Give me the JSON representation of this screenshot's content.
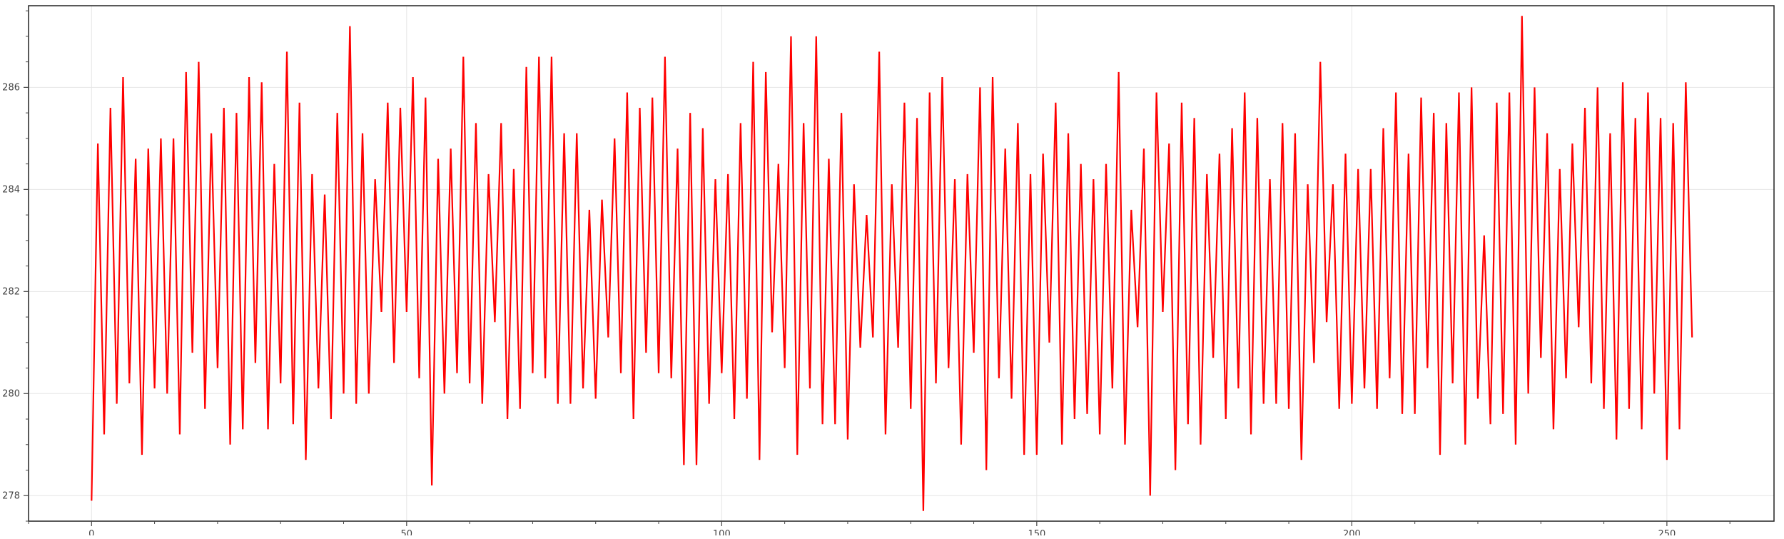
{
  "chart_data": {
    "type": "line",
    "title": "",
    "xlabel": "",
    "ylabel": "",
    "xlim": [
      -10,
      267
    ],
    "ylim": [
      277.5,
      287.6
    ],
    "grid": true,
    "line_color": "#ff0000",
    "x_ticks": [
      0,
      50,
      100,
      150,
      200,
      250
    ],
    "x_tick_labels": [
      "0",
      "50",
      "100",
      "150",
      "200",
      "250"
    ],
    "y_ticks": [
      278,
      280,
      282,
      284,
      286
    ],
    "y_tick_labels": [
      "278",
      "280",
      "282",
      "284",
      "286"
    ],
    "series": [
      {
        "x_start": 0,
        "x_step": 1,
        "values": [
          277.9,
          284.9,
          279.2,
          285.6,
          279.8,
          286.2,
          280.2,
          284.6,
          278.8,
          284.8,
          280.1,
          285.0,
          280.0,
          285.0,
          279.2,
          286.3,
          280.8,
          286.5,
          279.7,
          285.1,
          280.5,
          285.6,
          279.0,
          285.5,
          279.3,
          286.2,
          280.6,
          286.1,
          279.3,
          284.5,
          280.2,
          286.7,
          279.4,
          285.7,
          278.7,
          284.3,
          280.1,
          283.9,
          279.5,
          285.5,
          280.0,
          287.2,
          279.8,
          285.1,
          280.0,
          284.2,
          281.6,
          285.7,
          280.6,
          285.6,
          281.6,
          286.2,
          280.3,
          285.8,
          278.2,
          284.6,
          280.0,
          284.8,
          280.4,
          286.6,
          280.2,
          285.3,
          279.8,
          284.3,
          281.4,
          285.3,
          279.5,
          284.4,
          279.7,
          286.4,
          280.4,
          286.6,
          280.3,
          286.6,
          279.8,
          285.1,
          279.8,
          285.1,
          280.1,
          283.6,
          279.9,
          283.8,
          281.1,
          285.0,
          280.4,
          285.9,
          279.5,
          285.6,
          280.8,
          285.8,
          280.4,
          286.6,
          280.3,
          284.8,
          278.6,
          285.5,
          278.6,
          285.2,
          279.8,
          284.2,
          280.4,
          284.3,
          279.5,
          285.3,
          279.9,
          286.5,
          278.7,
          286.3,
          281.2,
          284.5,
          280.5,
          287.0,
          278.8,
          285.3,
          280.1,
          287.0,
          279.4,
          284.6,
          279.4,
          285.5,
          279.1,
          284.1,
          280.9,
          283.5,
          281.1,
          286.7,
          279.2,
          284.1,
          280.9,
          285.7,
          279.7,
          285.4,
          277.7,
          285.9,
          280.2,
          286.2,
          280.5,
          284.2,
          279.0,
          284.3,
          280.8,
          286.0,
          278.5,
          286.2,
          280.3,
          284.8,
          279.9,
          285.3,
          278.8,
          284.3,
          278.8,
          284.7,
          281.0,
          285.7,
          279.0,
          285.1,
          279.5,
          284.5,
          279.6,
          284.2,
          279.2,
          284.5,
          280.1,
          286.3,
          279.0,
          283.6,
          281.3,
          284.8,
          278.0,
          285.9,
          281.6,
          284.9,
          278.5,
          285.7,
          279.4,
          285.4,
          279.0,
          284.3,
          280.7,
          284.7,
          279.5,
          285.2,
          280.1,
          285.9,
          279.2,
          285.4,
          279.8,
          284.2,
          279.8,
          285.3,
          279.7,
          285.1,
          278.7,
          284.1,
          280.6,
          286.5,
          281.4,
          284.1,
          279.7,
          284.7,
          279.8,
          284.4,
          280.1,
          284.4,
          279.7,
          285.2,
          280.3,
          285.9,
          279.6,
          284.7,
          279.6,
          285.8,
          280.5,
          285.5,
          278.8,
          285.3,
          280.2,
          285.9,
          279.0,
          286.0,
          279.9,
          283.1,
          279.4,
          285.7,
          279.6,
          285.9,
          279.0,
          287.4,
          280.0,
          286.0,
          280.7,
          285.1,
          279.3,
          284.4,
          280.3,
          284.9,
          281.3,
          285.6,
          280.2,
          286.0,
          279.7,
          285.1,
          279.1,
          286.1,
          279.7,
          285.4,
          279.3,
          285.9,
          280.0,
          285.4,
          278.7,
          285.3,
          279.3,
          286.1,
          281.1
        ]
      }
    ]
  }
}
